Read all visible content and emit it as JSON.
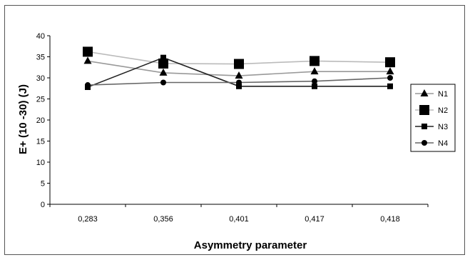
{
  "chart_data": {
    "type": "line",
    "categories": [
      "0,283",
      "0,356",
      "0,401",
      "0,417",
      "0,418"
    ],
    "xlabel": "Asymmetry parameter",
    "ylabel": "E+ (10 -30) (J)",
    "ylim": [
      0,
      40
    ],
    "yticks": [
      0,
      5,
      10,
      15,
      20,
      25,
      30,
      35,
      40
    ],
    "grid": false,
    "legend_position": "right",
    "series": [
      {
        "name": "N1",
        "marker": "triangle",
        "color": "#999999",
        "values": [
          34,
          31.2,
          30.5,
          31.5,
          31.5
        ]
      },
      {
        "name": "N2",
        "marker": "square-large",
        "color": "#bbbbbb",
        "values": [
          36.2,
          33.4,
          33.3,
          34,
          33.7
        ]
      },
      {
        "name": "N3",
        "marker": "square",
        "color": "#222222",
        "values": [
          27.8,
          34.8,
          28,
          28,
          28
        ]
      },
      {
        "name": "N4",
        "marker": "circle",
        "color": "#666666",
        "values": [
          28.3,
          28.9,
          28.9,
          29.2,
          30
        ]
      }
    ]
  }
}
